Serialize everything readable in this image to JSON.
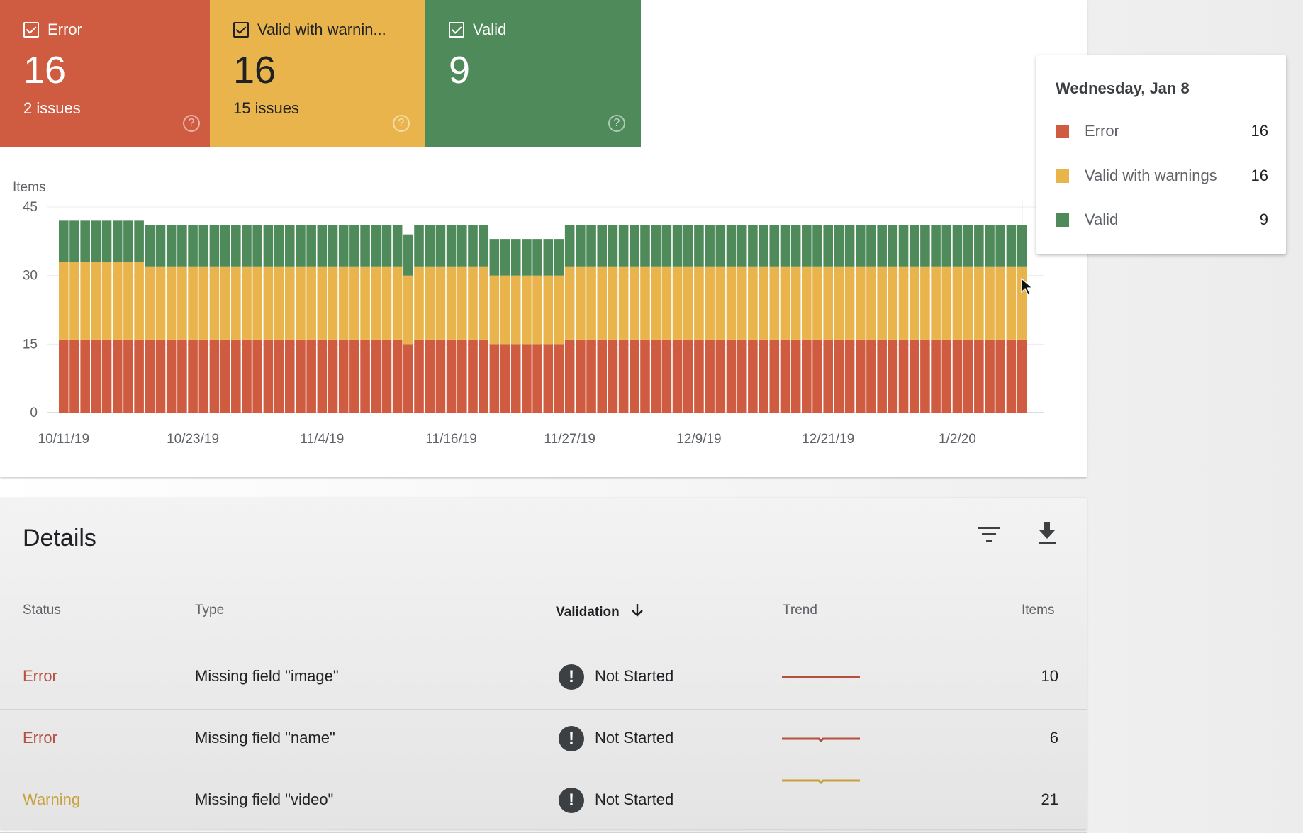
{
  "tiles": [
    {
      "key": "error",
      "label": "Error",
      "count": "16",
      "sub": "2 issues",
      "color": "#cf5b40"
    },
    {
      "key": "warn",
      "label": "Valid with warnin...",
      "count": "16",
      "sub": "15 issues",
      "color": "#e9b44c"
    },
    {
      "key": "valid",
      "label": "Valid",
      "count": "9",
      "sub": "",
      "color": "#4f8a5a"
    }
  ],
  "tooltip": {
    "date": "Wednesday, Jan 8",
    "rows": [
      {
        "label": "Error",
        "value": "16",
        "color": "#cf5b40"
      },
      {
        "label": "Valid with warnings",
        "value": "16",
        "color": "#e9b44c"
      },
      {
        "label": "Valid",
        "value": "9",
        "color": "#4f8a5a"
      }
    ]
  },
  "chart_data": {
    "type": "bar",
    "stacked": true,
    "ylabel": "Items",
    "ylim": [
      0,
      45
    ],
    "yticks": [
      0,
      15,
      30,
      45
    ],
    "x_tick_labels": [
      "10/11/19",
      "10/23/19",
      "11/4/19",
      "11/16/19",
      "11/27/19",
      "12/9/19",
      "12/21/19",
      "1/2/20"
    ],
    "x_tick_positions": [
      0,
      12,
      24,
      36,
      47,
      59,
      71,
      83
    ],
    "bar_count": 90,
    "series": [
      {
        "name": "Error",
        "color": "#cf5b40",
        "values": [
          16,
          16,
          16,
          16,
          16,
          16,
          16,
          16,
          16,
          16,
          16,
          16,
          16,
          16,
          16,
          16,
          16,
          16,
          16,
          16,
          16,
          16,
          16,
          16,
          16,
          16,
          16,
          16,
          16,
          16,
          16,
          16,
          15,
          16,
          16,
          16,
          16,
          16,
          16,
          16,
          15,
          15,
          15,
          15,
          15,
          15,
          15,
          16,
          16,
          16,
          16,
          16,
          16,
          16,
          16,
          16,
          16,
          16,
          16,
          16,
          16,
          16,
          16,
          16,
          16,
          16,
          16,
          16,
          16,
          16,
          16,
          16,
          16,
          16,
          16,
          16,
          16,
          16,
          16,
          16,
          16,
          16,
          16,
          16,
          16,
          16,
          16,
          16,
          16,
          16
        ]
      },
      {
        "name": "Valid with warnings",
        "color": "#e9b44c",
        "values": [
          17,
          17,
          17,
          17,
          17,
          17,
          17,
          17,
          16,
          16,
          16,
          16,
          16,
          16,
          16,
          16,
          16,
          16,
          16,
          16,
          16,
          16,
          16,
          16,
          16,
          16,
          16,
          16,
          16,
          16,
          16,
          16,
          15,
          16,
          16,
          16,
          16,
          16,
          16,
          16,
          15,
          15,
          15,
          15,
          15,
          15,
          15,
          16,
          16,
          16,
          16,
          16,
          16,
          16,
          16,
          16,
          16,
          16,
          16,
          16,
          16,
          16,
          16,
          16,
          16,
          16,
          16,
          16,
          16,
          16,
          16,
          16,
          16,
          16,
          16,
          16,
          16,
          16,
          16,
          16,
          16,
          16,
          16,
          16,
          16,
          16,
          16,
          16,
          16,
          16
        ]
      },
      {
        "name": "Valid",
        "color": "#4f8a5a",
        "values": [
          9,
          9,
          9,
          9,
          9,
          9,
          9,
          9,
          9,
          9,
          9,
          9,
          9,
          9,
          9,
          9,
          9,
          9,
          9,
          9,
          9,
          9,
          9,
          9,
          9,
          9,
          9,
          9,
          9,
          9,
          9,
          9,
          9,
          9,
          9,
          9,
          9,
          9,
          9,
          9,
          8,
          8,
          8,
          8,
          8,
          8,
          8,
          9,
          9,
          9,
          9,
          9,
          9,
          9,
          9,
          9,
          9,
          9,
          9,
          9,
          9,
          9,
          9,
          9,
          9,
          9,
          9,
          9,
          9,
          9,
          9,
          9,
          9,
          9,
          9,
          9,
          9,
          9,
          9,
          9,
          9,
          9,
          9,
          9,
          9,
          9,
          9,
          9,
          9,
          9
        ]
      }
    ]
  },
  "details": {
    "title": "Details",
    "columns": {
      "status": "Status",
      "type": "Type",
      "validation": "Validation",
      "trend": "Trend",
      "items": "Items"
    },
    "rows": [
      {
        "status": "Error",
        "status_kind": "error",
        "type": "Missing field \"image\"",
        "validation": "Not Started",
        "items": "10",
        "trend_color": "#b65040"
      },
      {
        "status": "Error",
        "status_kind": "error",
        "type": "Missing field \"name\"",
        "validation": "Not Started",
        "items": "6",
        "trend_color": "#b65040"
      },
      {
        "status": "Warning",
        "status_kind": "warning",
        "type": "Missing field \"video\"",
        "validation": "Not Started",
        "items": "21",
        "trend_color": "#c9a13a"
      }
    ],
    "icons": {
      "filter": "filter-icon",
      "download": "download-icon",
      "sort": "arrow-down-icon",
      "validation": "exclamation-icon"
    }
  }
}
